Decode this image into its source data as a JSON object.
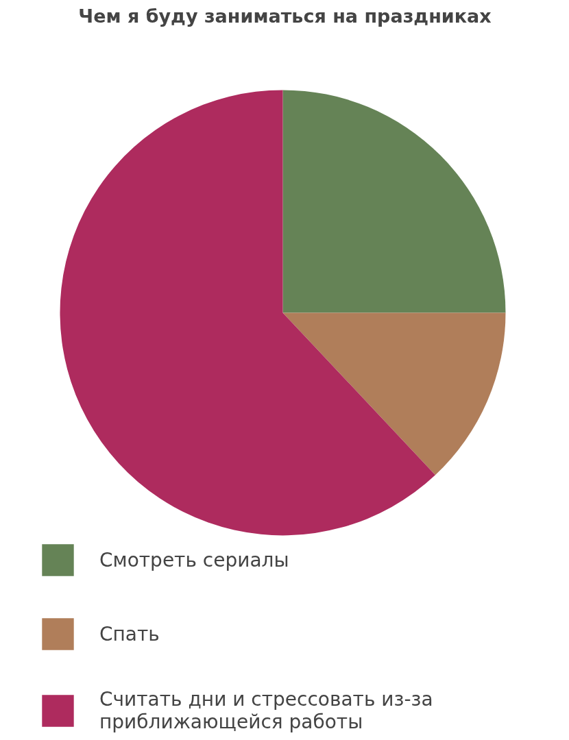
{
  "chart_data": {
    "type": "pie",
    "title": "Чем я буду заниматься на праздниках",
    "categories": [
      "Смотреть сериалы",
      "Спать",
      "Считать дни и стрессовать из-за приближающейся работы"
    ],
    "values": [
      25,
      13,
      62
    ],
    "colors": [
      "#658356",
      "#b07e5a",
      "#ae2b5e"
    ],
    "legend": "bottom"
  }
}
